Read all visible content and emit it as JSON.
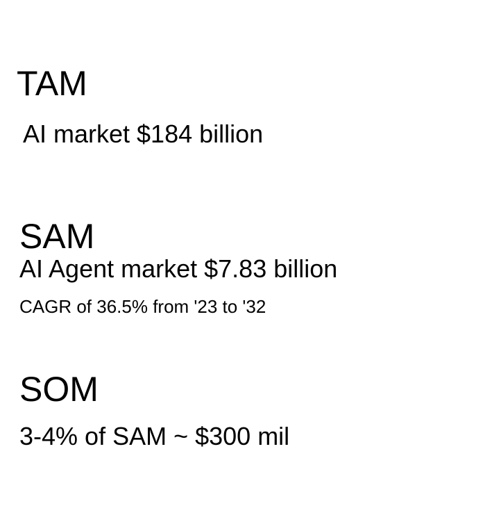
{
  "tam": {
    "title": "TAM",
    "description": "AI market $184 billion"
  },
  "sam": {
    "title": "SAM",
    "description": "AI Agent market $7.83 billion",
    "cagr": "CAGR of 36.5% from '23 to '32"
  },
  "som": {
    "title": "SOM",
    "description": "3-4% of SAM ~ $300 mil"
  }
}
